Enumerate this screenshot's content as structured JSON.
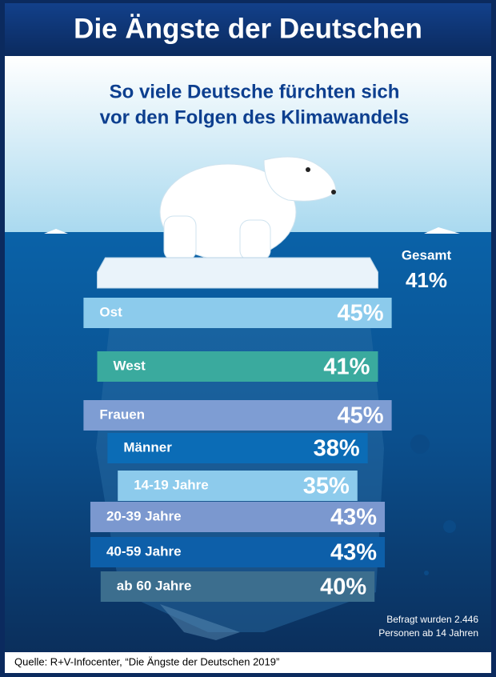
{
  "chart_data": {
    "type": "bar",
    "title": "Die Ängste der Deutschen",
    "subtitle": [
      "So viele Deutsche fürchten sich",
      "vor den Folgen des Klimawandels"
    ],
    "total": {
      "label": "Gesamt",
      "value": 41,
      "value_label": "41%"
    },
    "categories": [
      "Ost",
      "West",
      "Frauen",
      "Männer",
      "14-19 Jahre",
      "20-39 Jahre",
      "40-59 Jahre",
      "ab 60 Jahre"
    ],
    "values": [
      45,
      41,
      45,
      38,
      35,
      43,
      43,
      40
    ],
    "value_labels": [
      "45%",
      "41%",
      "45%",
      "38%",
      "35%",
      "43%",
      "43%",
      "40%"
    ],
    "colors": [
      "#8ccbec",
      "#3aaa9e",
      "#7e9dd3",
      "#0b6cb6",
      "#8dcbec",
      "#7b98cf",
      "#0d5fa9",
      "#3c6e8e"
    ],
    "note": [
      "Befragt wurden 2.446",
      "Personen ab 14 Jahren"
    ],
    "source": "Quelle: R+V-Infocenter, “Die Ängste der Deutschen 2019”"
  }
}
